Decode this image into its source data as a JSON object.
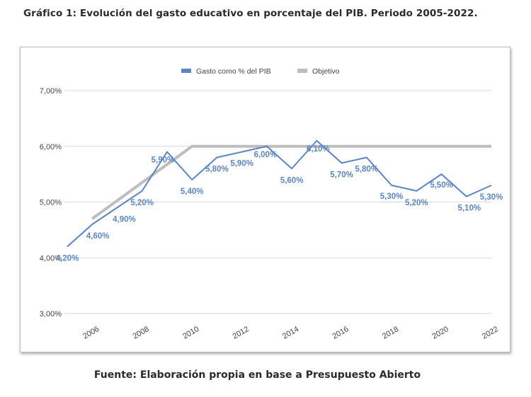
{
  "header": {
    "title": "Gráfico 1: Evolución del gasto educativo en porcentaje del PIB. Periodo 2005-2022."
  },
  "footer": {
    "source": "Fuente: Elaboración propia en base a Presupuesto Abierto"
  },
  "colors": {
    "series_gasto": "#5b86c2",
    "series_objetivo": "#bdbdbd",
    "data_label": "#5b86c2",
    "grid": "#d9d9d9"
  },
  "chart_data": {
    "type": "line",
    "title": "",
    "xlabel": "",
    "ylabel": "",
    "ylim": [
      3,
      7
    ],
    "y_ticks": [
      {
        "value": 3,
        "label": "3,00%"
      },
      {
        "value": 4,
        "label": "4,00%"
      },
      {
        "value": 5,
        "label": "5,00%"
      },
      {
        "value": 6,
        "label": "6,00%"
      },
      {
        "value": 7,
        "label": "7,00%"
      }
    ],
    "xlim": [
      2005,
      2022
    ],
    "x_ticks": [
      "2006",
      "2008",
      "2010",
      "2012",
      "2014",
      "2016",
      "2018",
      "2020",
      "2022"
    ],
    "grid": true,
    "legend_position": "top-center",
    "series": [
      {
        "name": "Gasto como % del PIB",
        "x": [
          2005,
          2006,
          2007,
          2008,
          2009,
          2010,
          2011,
          2012,
          2013,
          2014,
          2015,
          2016,
          2017,
          2018,
          2019,
          2020,
          2021,
          2022
        ],
        "values": [
          4.2,
          4.6,
          4.9,
          5.2,
          5.9,
          5.4,
          5.8,
          5.9,
          6.0,
          5.6,
          6.1,
          5.7,
          5.8,
          5.3,
          5.2,
          5.5,
          5.1,
          5.3
        ],
        "labels": [
          "4,20%",
          "4,60%",
          "4,90%",
          "5,20%",
          "5,90%",
          "5,40%",
          "5,80%",
          "5,90%",
          "6,00%",
          "5,60%",
          "6,10%",
          "5,70%",
          "5,80%",
          "5,30%",
          "5,20%",
          "5,50%",
          "5,10%",
          "5,30%"
        ]
      },
      {
        "name": "Objetivo",
        "x": [
          2006,
          2010,
          2022
        ],
        "values": [
          4.7,
          6.0,
          6.0
        ]
      }
    ]
  }
}
